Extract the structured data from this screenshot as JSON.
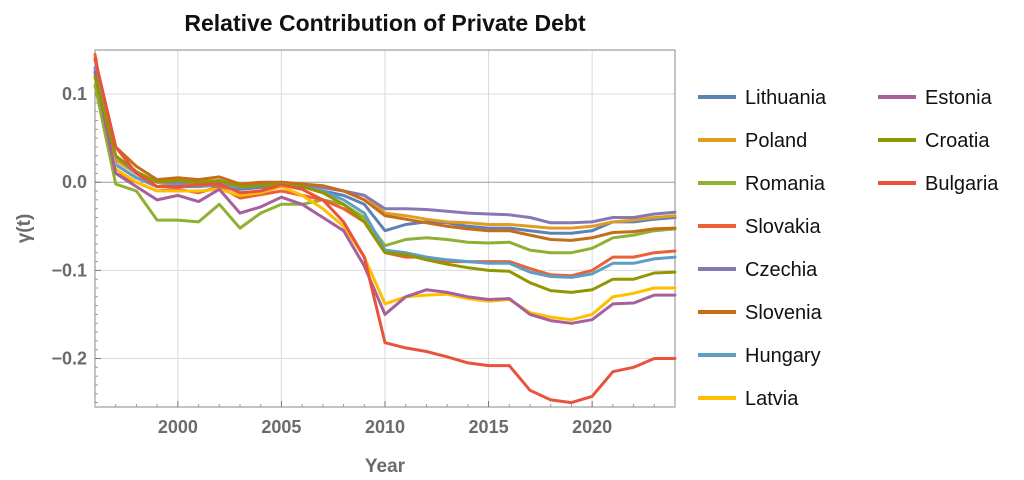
{
  "chart_data": {
    "type": "line",
    "title": "Relative Contribution of Private Debt",
    "xlabel": "Year",
    "ylabel": "γ(t)",
    "xlim": [
      1996,
      2024
    ],
    "ylim": [
      -0.255,
      0.15
    ],
    "x_ticks": [
      2000,
      2005,
      2010,
      2015,
      2020
    ],
    "y_ticks": [
      0.1,
      0.0,
      -0.1,
      -0.2
    ],
    "y_tick_labels": [
      "0.1",
      "0.0",
      "−0.1",
      "−0.2"
    ],
    "grid": true,
    "legend_position": "right",
    "x": [
      1996,
      1997,
      1998,
      1999,
      2000,
      2001,
      2002,
      2003,
      2004,
      2005,
      2006,
      2007,
      2008,
      2009,
      2010,
      2011,
      2012,
      2013,
      2014,
      2015,
      2016,
      2017,
      2018,
      2019,
      2020,
      2021,
      2022,
      2023,
      2024
    ],
    "series": [
      {
        "name": "Lithuania",
        "color": "#5e81b5",
        "values": [
          0.13,
          0.02,
          0.005,
          -0.005,
          -0.005,
          -0.005,
          -0.003,
          -0.008,
          -0.006,
          -0.003,
          -0.005,
          -0.01,
          -0.015,
          -0.025,
          -0.055,
          -0.048,
          -0.045,
          -0.046,
          -0.05,
          -0.052,
          -0.052,
          -0.055,
          -0.058,
          -0.058,
          -0.055,
          -0.045,
          -0.045,
          -0.042,
          -0.04
        ]
      },
      {
        "name": "Poland",
        "color": "#e19c24",
        "values": [
          0.12,
          0.025,
          0.01,
          -0.005,
          0,
          -0.003,
          0,
          -0.005,
          -0.004,
          -0.002,
          -0.004,
          -0.006,
          -0.01,
          -0.015,
          -0.035,
          -0.038,
          -0.042,
          -0.045,
          -0.046,
          -0.048,
          -0.048,
          -0.05,
          -0.052,
          -0.052,
          -0.05,
          -0.045,
          -0.043,
          -0.04,
          -0.038
        ]
      },
      {
        "name": "Romania",
        "color": "#8fb032",
        "values": [
          0.11,
          -0.002,
          -0.01,
          -0.043,
          -0.043,
          -0.045,
          -0.025,
          -0.052,
          -0.035,
          -0.025,
          -0.025,
          -0.02,
          -0.025,
          -0.04,
          -0.072,
          -0.065,
          -0.063,
          -0.065,
          -0.068,
          -0.069,
          -0.068,
          -0.077,
          -0.08,
          -0.08,
          -0.075,
          -0.063,
          -0.06,
          -0.055,
          -0.053
        ]
      },
      {
        "name": "Slovakia",
        "color": "#eb6235",
        "values": [
          0.145,
          0.01,
          0,
          -0.01,
          -0.008,
          -0.012,
          -0.005,
          -0.018,
          -0.014,
          -0.01,
          -0.015,
          -0.02,
          -0.03,
          -0.045,
          -0.08,
          -0.085,
          -0.085,
          -0.09,
          -0.09,
          -0.09,
          -0.09,
          -0.098,
          -0.105,
          -0.106,
          -0.1,
          -0.085,
          -0.085,
          -0.08,
          -0.078
        ]
      },
      {
        "name": "Czechia",
        "color": "#8778b3",
        "values": [
          0.12,
          0.03,
          0.01,
          0,
          0,
          0,
          0,
          -0.005,
          -0.003,
          0,
          -0.002,
          -0.006,
          -0.01,
          -0.015,
          -0.03,
          -0.03,
          -0.031,
          -0.033,
          -0.035,
          -0.036,
          -0.037,
          -0.04,
          -0.046,
          -0.046,
          -0.045,
          -0.04,
          -0.04,
          -0.036,
          -0.034
        ]
      },
      {
        "name": "Slovenia",
        "color": "#c56e1a",
        "values": [
          0.14,
          0.04,
          0.018,
          0.003,
          0.005,
          0.003,
          0.006,
          -0.002,
          0,
          0,
          -0.002,
          -0.004,
          -0.01,
          -0.02,
          -0.038,
          -0.042,
          -0.046,
          -0.05,
          -0.053,
          -0.055,
          -0.055,
          -0.06,
          -0.065,
          -0.066,
          -0.063,
          -0.057,
          -0.056,
          -0.053,
          -0.052
        ]
      },
      {
        "name": "Hungary",
        "color": "#5d9ec7",
        "values": [
          0.13,
          0.02,
          0.005,
          -0.005,
          -0.003,
          -0.005,
          -0.002,
          -0.006,
          -0.004,
          -0.002,
          -0.005,
          -0.01,
          -0.02,
          -0.035,
          -0.077,
          -0.08,
          -0.085,
          -0.088,
          -0.09,
          -0.092,
          -0.092,
          -0.102,
          -0.107,
          -0.108,
          -0.104,
          -0.092,
          -0.092,
          -0.087,
          -0.085
        ]
      },
      {
        "name": "Latvia",
        "color": "#ffbf00",
        "values": [
          0.125,
          0.015,
          0,
          -0.01,
          -0.01,
          -0.01,
          -0.008,
          -0.015,
          -0.012,
          -0.005,
          -0.015,
          -0.03,
          -0.05,
          -0.085,
          -0.138,
          -0.13,
          -0.128,
          -0.127,
          -0.132,
          -0.135,
          -0.133,
          -0.148,
          -0.153,
          -0.156,
          -0.15,
          -0.13,
          -0.126,
          -0.12,
          -0.12
        ]
      },
      {
        "name": "Estonia",
        "color": "#a5609d",
        "values": [
          0.125,
          0.01,
          -0.005,
          -0.02,
          -0.015,
          -0.022,
          -0.008,
          -0.035,
          -0.028,
          -0.017,
          -0.025,
          -0.04,
          -0.055,
          -0.095,
          -0.15,
          -0.13,
          -0.122,
          -0.125,
          -0.13,
          -0.133,
          -0.132,
          -0.15,
          -0.157,
          -0.16,
          -0.156,
          -0.138,
          -0.137,
          -0.128,
          -0.128
        ]
      },
      {
        "name": "Croatia",
        "color": "#929600",
        "values": [
          0.12,
          0.03,
          0.012,
          0,
          0.002,
          0,
          0.002,
          -0.005,
          -0.004,
          -0.002,
          -0.005,
          -0.012,
          -0.025,
          -0.045,
          -0.08,
          -0.082,
          -0.088,
          -0.093,
          -0.097,
          -0.1,
          -0.101,
          -0.114,
          -0.123,
          -0.125,
          -0.122,
          -0.11,
          -0.11,
          -0.103,
          -0.102
        ]
      },
      {
        "name": "Bulgaria",
        "color": "#e9533d",
        "values": [
          0.14,
          0.04,
          0.01,
          -0.005,
          -0.005,
          -0.003,
          -0.002,
          -0.012,
          -0.01,
          -0.003,
          -0.008,
          -0.02,
          -0.045,
          -0.085,
          -0.182,
          -0.188,
          -0.192,
          -0.198,
          -0.205,
          -0.208,
          -0.208,
          -0.236,
          -0.247,
          -0.25,
          -0.243,
          -0.215,
          -0.21,
          -0.2,
          -0.2
        ]
      }
    ]
  }
}
